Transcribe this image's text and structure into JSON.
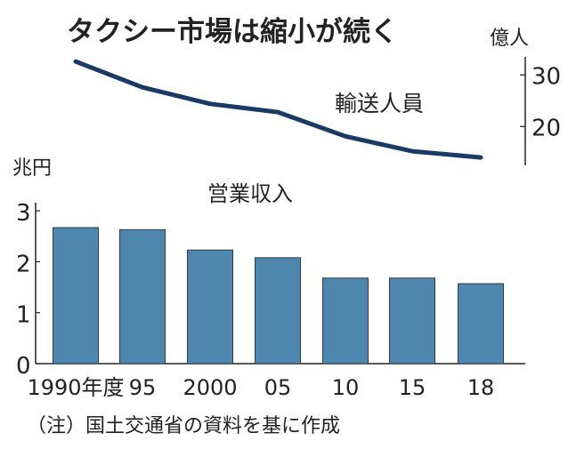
{
  "chart_data": [
    {
      "type": "bar",
      "title": "タクシー市場は縮小が続く",
      "series_label": "営業収入",
      "ylabel": "兆円",
      "ylim": [
        0,
        3
      ],
      "yticks": [
        "0",
        "1",
        "2",
        "3"
      ],
      "categories": [
        "1990年度",
        "95",
        "2000",
        "05",
        "10",
        "15",
        "18"
      ],
      "values": [
        2.67,
        2.63,
        2.23,
        2.08,
        1.68,
        1.68,
        1.57
      ],
      "color": "#4e86ad"
    },
    {
      "type": "line",
      "series_label": "輸送人員",
      "ylabel": "億人",
      "axis": "right",
      "yticks": [
        "20",
        "30"
      ],
      "categories": [
        "1990年度",
        "95",
        "2000",
        "05",
        "10",
        "15",
        "18"
      ],
      "values": [
        32.6,
        27.6,
        24.4,
        22.8,
        18.1,
        15.2,
        14.0
      ],
      "color": "#1a3a66"
    }
  ],
  "note": "（注）国土交通省の資料を基に作成"
}
